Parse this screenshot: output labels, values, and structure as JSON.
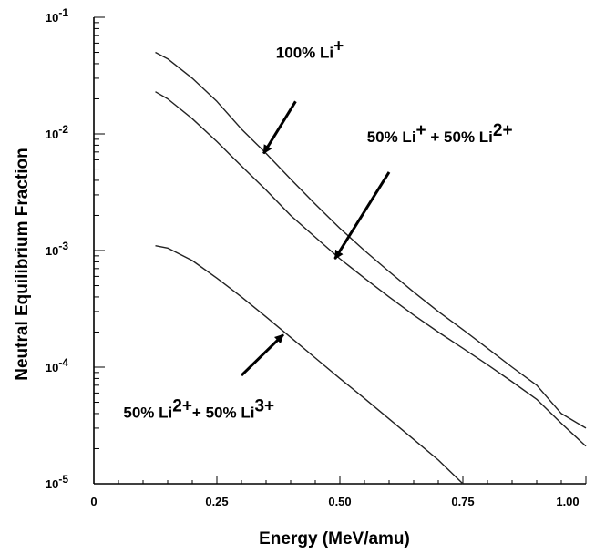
{
  "chart_data": {
    "type": "line",
    "title": "",
    "xlabel": "Energy (MeV/amu)",
    "ylabel": "Neutral Equilibrium Fraction",
    "xlim": [
      0,
      1.0
    ],
    "ylim": [
      1e-05,
      0.1
    ],
    "yscale": "log",
    "grid": false,
    "x_ticks": [
      {
        "value": 0,
        "label": "0"
      },
      {
        "value": 0.25,
        "label": "0.25"
      },
      {
        "value": 0.5,
        "label": "0.50"
      },
      {
        "value": 0.75,
        "label": "0.75"
      },
      {
        "value": 1.0,
        "label": "1.00"
      }
    ],
    "y_ticks": [
      {
        "exp": -1,
        "base": "10",
        "sup": "-1"
      },
      {
        "exp": -2,
        "base": "10",
        "sup": "-2"
      },
      {
        "exp": -3,
        "base": "10",
        "sup": "-3"
      },
      {
        "exp": -4,
        "base": "10",
        "sup": "-4"
      },
      {
        "exp": -5,
        "base": "10",
        "sup": "-5"
      }
    ],
    "series": [
      {
        "x": [
          0.125,
          0.15,
          0.2,
          0.25,
          0.3,
          0.35,
          0.4,
          0.45,
          0.5,
          0.55,
          0.6,
          0.65,
          0.7,
          0.75,
          0.8,
          0.85,
          0.9,
          0.95,
          1.0
        ],
        "values": [
          0.05,
          0.044,
          0.03,
          0.019,
          0.011,
          0.0068,
          0.0041,
          0.0025,
          0.00155,
          0.001,
          0.00066,
          0.00044,
          0.0003,
          0.00021,
          0.000145,
          0.0001,
          7e-05,
          4e-05,
          3e-05
        ]
      },
      {
        "x": [
          0.125,
          0.15,
          0.2,
          0.25,
          0.3,
          0.35,
          0.4,
          0.45,
          0.5,
          0.55,
          0.6,
          0.65,
          0.7,
          0.75,
          0.8,
          0.85,
          0.9,
          0.95,
          1.0
        ],
        "values": [
          0.023,
          0.02,
          0.0135,
          0.0086,
          0.0053,
          0.0033,
          0.002,
          0.0013,
          0.00085,
          0.00058,
          0.0004,
          0.00028,
          0.0002,
          0.000145,
          0.000105,
          7.5e-05,
          5.3e-05,
          3.3e-05,
          2.1e-05
        ]
      },
      {
        "x": [
          0.125,
          0.15,
          0.2,
          0.25,
          0.3,
          0.35,
          0.4,
          0.45,
          0.5,
          0.55,
          0.6,
          0.65,
          0.7,
          0.75
        ],
        "values": [
          0.0011,
          0.00105,
          0.00082,
          0.00058,
          0.0004,
          0.00027,
          0.00018,
          0.00012,
          8e-05,
          5.4e-05,
          3.6e-05,
          2.4e-05,
          1.6e-05,
          1e-05
        ]
      }
    ],
    "annotations": [
      {
        "parts": [
          {
            "text": "100% Li",
            "sup": false
          },
          {
            "text": "+",
            "sup": true
          }
        ],
        "text_at": [
          0.37,
          0.045
        ],
        "arrow_from": [
          0.41,
          0.019
        ],
        "arrow_to": [
          0.345,
          0.0068
        ]
      },
      {
        "parts": [
          {
            "text": "50% Li",
            "sup": false
          },
          {
            "text": "+",
            "sup": true
          },
          {
            "text": " + 50% Li",
            "sup": false
          },
          {
            "text": "2+",
            "sup": true
          }
        ],
        "text_at": [
          0.555,
          0.0085
        ],
        "arrow_from": [
          0.6,
          0.0047
        ],
        "arrow_to": [
          0.49,
          0.00085
        ]
      },
      {
        "parts": [
          {
            "text": "50% Li",
            "sup": false
          },
          {
            "text": "2+",
            "sup": true
          },
          {
            "text": "+ 50% Li",
            "sup": false
          },
          {
            "text": "3+",
            "sup": true
          }
        ],
        "text_at": [
          0.06,
          3.7e-05
        ],
        "arrow_from": [
          0.3,
          8.5e-05
        ],
        "arrow_to": [
          0.385,
          0.00019
        ]
      }
    ]
  }
}
